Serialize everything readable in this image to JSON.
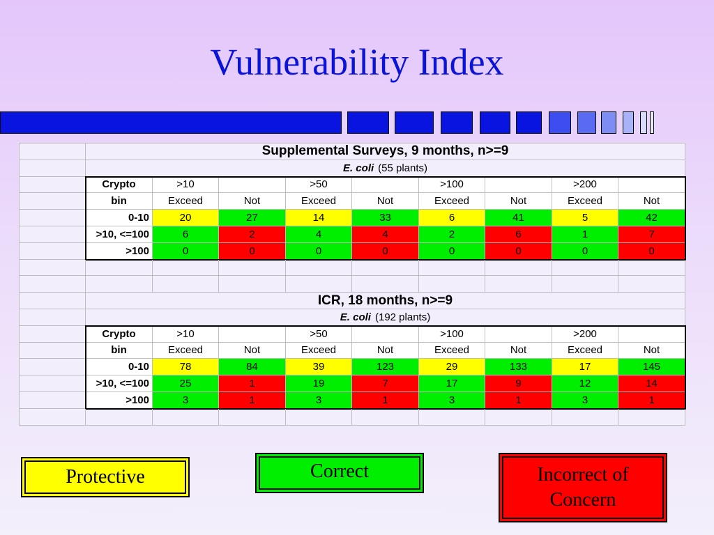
{
  "slide": {
    "title": "Vulnerability Index"
  },
  "colors": {
    "yellow": "#ffff00",
    "green": "#00ee00",
    "red": "#ff0000"
  },
  "header_cols": {
    "crypto_label": "Crypto",
    "bin_label": "bin",
    "thresholds": [
      ">10",
      ">50",
      ">100",
      ">200"
    ],
    "exceed": "Exceed",
    "not": "Not"
  },
  "tables": [
    {
      "title": "Supplemental Surveys, 9 months, n>=9",
      "organism": "E. coli",
      "plants": "(55 plants)",
      "rows": [
        {
          "bin": "0-10",
          "values": [
            "20",
            "27",
            "14",
            "33",
            "6",
            "41",
            "5",
            "42"
          ],
          "colors": [
            "yellow",
            "green",
            "yellow",
            "green",
            "yellow",
            "green",
            "yellow",
            "green"
          ]
        },
        {
          "bin": ">10, <=100",
          "values": [
            "6",
            "2",
            "4",
            "4",
            "2",
            "6",
            "1",
            "7"
          ],
          "colors": [
            "green",
            "red",
            "green",
            "red",
            "green",
            "red",
            "green",
            "red"
          ]
        },
        {
          "bin": ">100",
          "values": [
            "0",
            "0",
            "0",
            "0",
            "0",
            "0",
            "0",
            "0"
          ],
          "colors": [
            "green",
            "red",
            "green",
            "red",
            "green",
            "red",
            "green",
            "red"
          ]
        }
      ]
    },
    {
      "title": "ICR, 18 months, n>=9",
      "organism": "E. coli",
      "plants": "(192 plants)",
      "rows": [
        {
          "bin": "0-10",
          "values": [
            "78",
            "84",
            "39",
            "123",
            "29",
            "133",
            "17",
            "145"
          ],
          "colors": [
            "yellow",
            "green",
            "yellow",
            "green",
            "yellow",
            "green",
            "yellow",
            "green"
          ]
        },
        {
          "bin": ">10, <=100",
          "values": [
            "25",
            "1",
            "19",
            "7",
            "17",
            "9",
            "12",
            "14"
          ],
          "colors": [
            "green",
            "red",
            "green",
            "red",
            "green",
            "red",
            "green",
            "red"
          ]
        },
        {
          "bin": ">100",
          "values": [
            "3",
            "1",
            "3",
            "1",
            "3",
            "1",
            "3",
            "1"
          ],
          "colors": [
            "green",
            "red",
            "green",
            "red",
            "green",
            "red",
            "green",
            "red"
          ]
        }
      ]
    }
  ],
  "legend": {
    "protective": "Protective",
    "correct": "Correct",
    "incorrect_line1": "Incorrect of",
    "incorrect_line2": "Concern"
  }
}
